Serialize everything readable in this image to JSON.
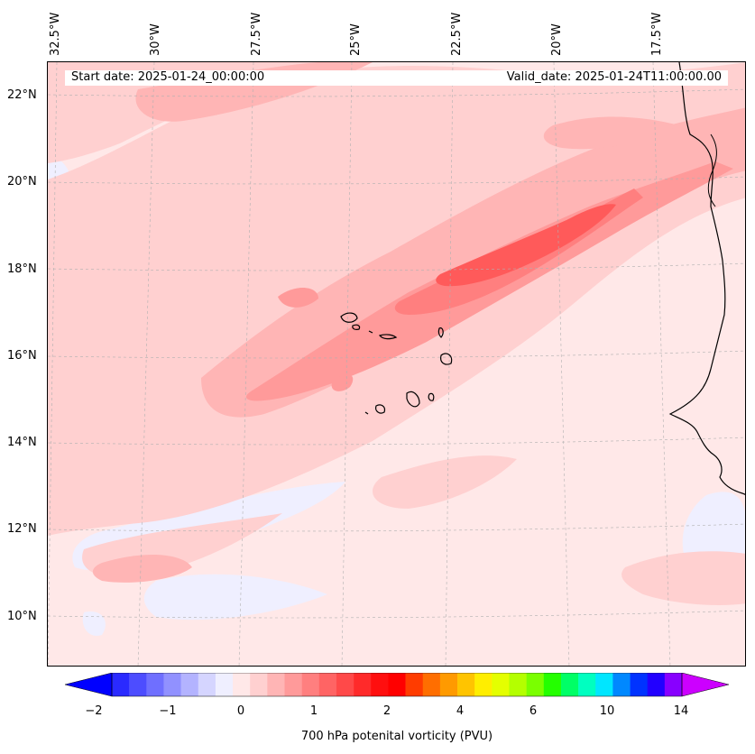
{
  "map": {
    "start_date": "Start date: 2025-01-24_00:00:00",
    "valid_date": "Valid_date: 2025-01-24T11:00:00.00",
    "lon_labels": [
      "32.5°W",
      "30°W",
      "27.5°W",
      "25°W",
      "22.5°W",
      "20°W",
      "17.5°W"
    ],
    "lat_labels": [
      "22°N",
      "20°N",
      "18°N",
      "16°N",
      "14°N",
      "12°N",
      "10°N"
    ],
    "background_color": "#ffe8e8"
  },
  "colorbar": {
    "title": "700 hPa potenital vorticity (PVU)",
    "ticks": [
      "−2",
      "−1",
      "0",
      "1",
      "2",
      "4",
      "6",
      "10",
      "14"
    ],
    "colors": [
      "#0000ff",
      "#2a2aff",
      "#4d4dff",
      "#6f6fff",
      "#9191ff",
      "#b3b3ff",
      "#d5d5ff",
      "#efefff",
      "#ffe8e8",
      "#ffd0d0",
      "#ffb5b5",
      "#ff9a9a",
      "#ff7f7f",
      "#ff6464",
      "#ff4949",
      "#ff2a2a",
      "#ff0f0f",
      "#ff0000",
      "#ff3c00",
      "#ff6e00",
      "#ff9a00",
      "#ffc400",
      "#ffee00",
      "#e4ff00",
      "#b4ff00",
      "#7aff00",
      "#24ff00",
      "#00ff66",
      "#00ffc0",
      "#00e6ff",
      "#0088ff",
      "#0033ff",
      "#2200ff",
      "#8800ff",
      "#cc00ff"
    ]
  }
}
